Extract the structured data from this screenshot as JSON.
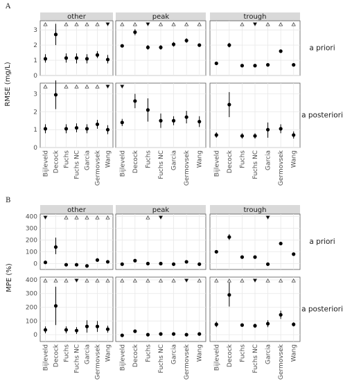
{
  "figure_letters": [
    "A",
    "B"
  ],
  "methods": [
    "Bijleveld",
    "Decock",
    "Fuchs",
    "Fuchs NC",
    "Garcia",
    "Germovsek",
    "Wang"
  ],
  "columns": [
    "other",
    "peak",
    "trough"
  ],
  "rows": [
    "a priori",
    "a posteriori"
  ],
  "chart_data": [
    {
      "type": "scatter",
      "panel_group": "A",
      "ylabel": "RMSE (mg/L)",
      "ylim": [
        0,
        3.6
      ],
      "yticks": [
        0,
        1,
        2,
        3
      ],
      "grid": true,
      "facets": [
        {
          "column": "other",
          "row": "a priori",
          "x": [
            "Bijleveld",
            "Decock",
            "Fuchs",
            "Fuchs NC",
            "Garcia",
            "Germovsek",
            "Wang"
          ],
          "y": [
            1.1,
            2.7,
            1.15,
            1.15,
            1.1,
            1.35,
            1.05
          ],
          "ylow": [
            0.85,
            2.0,
            0.85,
            0.8,
            0.8,
            1.15,
            0.8
          ],
          "yhigh": [
            1.4,
            3.4,
            1.45,
            1.45,
            1.4,
            1.6,
            1.35
          ],
          "markers": [
            "open",
            "none",
            "open",
            "open",
            "open",
            "open",
            "filled"
          ]
        },
        {
          "column": "peak",
          "row": "a priori",
          "x": [
            "Bijleveld",
            "Decock",
            "Fuchs",
            "Fuchs NC",
            "Garcia",
            "Germovsek",
            "Wang"
          ],
          "y": [
            1.95,
            2.85,
            1.85,
            1.85,
            2.05,
            2.3,
            2.0
          ],
          "ylow": [
            1.85,
            2.65,
            1.7,
            1.7,
            1.9,
            2.15,
            1.9
          ],
          "yhigh": [
            2.05,
            3.05,
            2.0,
            2.0,
            2.2,
            2.45,
            2.1
          ],
          "markers": [
            "open",
            "open",
            "filled",
            "open",
            "open",
            "open",
            "open"
          ]
        },
        {
          "column": "trough",
          "row": "a priori",
          "x": [
            "Bijleveld",
            "Decock",
            "Fuchs",
            "Fuchs NC",
            "Garcia",
            "Germovsek",
            "Wang"
          ],
          "y": [
            0.8,
            2.0,
            0.65,
            0.65,
            0.7,
            1.6,
            0.7
          ],
          "ylow": [
            0.75,
            1.85,
            0.6,
            0.6,
            0.65,
            1.55,
            0.65
          ],
          "yhigh": [
            0.85,
            2.15,
            0.7,
            0.7,
            0.75,
            1.65,
            0.75
          ],
          "markers": [
            "none",
            "none",
            "open",
            "filled",
            "open",
            "open",
            "open"
          ]
        },
        {
          "column": "other",
          "row": "a posteriori",
          "x": [
            "Bijleveld",
            "Decock",
            "Fuchs",
            "Fuchs NC",
            "Garcia",
            "Germovsek",
            "Wang"
          ],
          "y": [
            1.05,
            2.95,
            1.05,
            1.1,
            1.05,
            1.3,
            1.0
          ],
          "ylow": [
            0.8,
            2.15,
            0.8,
            0.85,
            0.8,
            1.05,
            0.75
          ],
          "yhigh": [
            1.3,
            3.75,
            1.3,
            1.35,
            1.3,
            1.55,
            1.25
          ],
          "markers": [
            "open",
            "none",
            "open",
            "open",
            "open",
            "open",
            "filled"
          ]
        },
        {
          "column": "peak",
          "row": "a posteriori",
          "x": [
            "Bijleveld",
            "Decock",
            "Fuchs",
            "Fuchs NC",
            "Garcia",
            "Germovsek",
            "Wang"
          ],
          "y": [
            1.4,
            2.6,
            2.1,
            1.5,
            1.5,
            1.7,
            1.45
          ],
          "ylow": [
            1.2,
            2.2,
            1.45,
            1.1,
            1.25,
            1.35,
            1.15
          ],
          "yhigh": [
            1.6,
            3.0,
            2.75,
            1.9,
            1.75,
            2.05,
            1.75
          ],
          "markers": [
            "filled",
            "none",
            "none",
            "none",
            "none",
            "none",
            "none"
          ]
        },
        {
          "column": "trough",
          "row": "a posteriori",
          "x": [
            "Bijleveld",
            "Decock",
            "Fuchs",
            "Fuchs NC",
            "Garcia",
            "Germovsek",
            "Wang"
          ],
          "y": [
            0.7,
            2.4,
            0.65,
            0.65,
            1.0,
            1.05,
            0.7
          ],
          "ylow": [
            0.55,
            1.7,
            0.5,
            0.5,
            0.55,
            0.8,
            0.5
          ],
          "yhigh": [
            0.85,
            3.1,
            0.8,
            0.8,
            1.4,
            1.3,
            0.9
          ],
          "markers": [
            "none",
            "none",
            "none",
            "none",
            "none",
            "none",
            "none"
          ]
        }
      ]
    },
    {
      "type": "scatter",
      "panel_group": "B",
      "ylabel": "MPE (%)",
      "ylim": [
        -50,
        420
      ],
      "yticks": [
        0,
        100,
        200,
        300,
        400
      ],
      "grid": true,
      "facets": [
        {
          "column": "other",
          "row": "a priori",
          "x": [
            "Bijleveld",
            "Decock",
            "Fuchs",
            "Fuchs NC",
            "Garcia",
            "Germovsek",
            "Wang"
          ],
          "y": [
            10,
            140,
            -10,
            -10,
            -20,
            30,
            15
          ],
          "ylow": [
            0,
            80,
            -20,
            -15,
            -30,
            15,
            5
          ],
          "yhigh": [
            20,
            220,
            0,
            -5,
            -10,
            45,
            25
          ],
          "markers": [
            "filled",
            "none",
            "open",
            "open",
            "open",
            "open",
            "open"
          ]
        },
        {
          "column": "peak",
          "row": "a priori",
          "x": [
            "Bijleveld",
            "Decock",
            "Fuchs",
            "Fuchs NC",
            "Garcia",
            "Germovsek",
            "Wang"
          ],
          "y": [
            -5,
            25,
            0,
            0,
            -5,
            15,
            -5
          ],
          "ylow": [
            -10,
            15,
            -5,
            -5,
            -10,
            5,
            -10
          ],
          "yhigh": [
            0,
            35,
            5,
            5,
            0,
            25,
            0
          ],
          "markers": [
            "none",
            "none",
            "open",
            "filled",
            "none",
            "none",
            "none"
          ]
        },
        {
          "column": "trough",
          "row": "a priori",
          "x": [
            "Bijleveld",
            "Decock",
            "Fuchs",
            "Fuchs NC",
            "Garcia",
            "Germovsek",
            "Wang"
          ],
          "y": [
            100,
            225,
            55,
            55,
            -5,
            170,
            80
          ],
          "ylow": [
            90,
            200,
            50,
            50,
            -10,
            160,
            75
          ],
          "yhigh": [
            110,
            250,
            60,
            60,
            0,
            180,
            85
          ],
          "markers": [
            "none",
            "none",
            "none",
            "none",
            "filled",
            "none",
            "none"
          ]
        },
        {
          "column": "other",
          "row": "a posteriori",
          "x": [
            "Bijleveld",
            "Decock",
            "Fuchs",
            "Fuchs NC",
            "Garcia",
            "Germovsek",
            "Wang"
          ],
          "y": [
            35,
            210,
            35,
            30,
            60,
            60,
            40
          ],
          "ylow": [
            10,
            70,
            10,
            5,
            15,
            20,
            15
          ],
          "yhigh": [
            60,
            350,
            60,
            55,
            105,
            100,
            65
          ],
          "markers": [
            "open",
            "open",
            "open",
            "filled",
            "open",
            "open",
            "open"
          ]
        },
        {
          "column": "peak",
          "row": "a posteriori",
          "x": [
            "Bijleveld",
            "Decock",
            "Fuchs",
            "Fuchs NC",
            "Garcia",
            "Germovsek",
            "Wang"
          ],
          "y": [
            -5,
            25,
            0,
            5,
            5,
            0,
            5
          ],
          "ylow": [
            -10,
            15,
            -5,
            0,
            0,
            -5,
            0
          ],
          "yhigh": [
            0,
            35,
            5,
            10,
            10,
            5,
            10
          ],
          "markers": [
            "open",
            "open",
            "open",
            "open",
            "open",
            "filled",
            "open"
          ]
        },
        {
          "column": "trough",
          "row": "a posteriori",
          "x": [
            "Bijleveld",
            "Decock",
            "Fuchs",
            "Fuchs NC",
            "Garcia",
            "Germovsek",
            "Wang"
          ],
          "y": [
            75,
            290,
            70,
            65,
            80,
            145,
            75
          ],
          "ylow": [
            55,
            205,
            60,
            50,
            55,
            115,
            60
          ],
          "yhigh": [
            95,
            380,
            80,
            80,
            105,
            175,
            90
          ],
          "markers": [
            "open",
            "open",
            "open",
            "filled",
            "open",
            "open",
            "open"
          ]
        }
      ]
    }
  ]
}
